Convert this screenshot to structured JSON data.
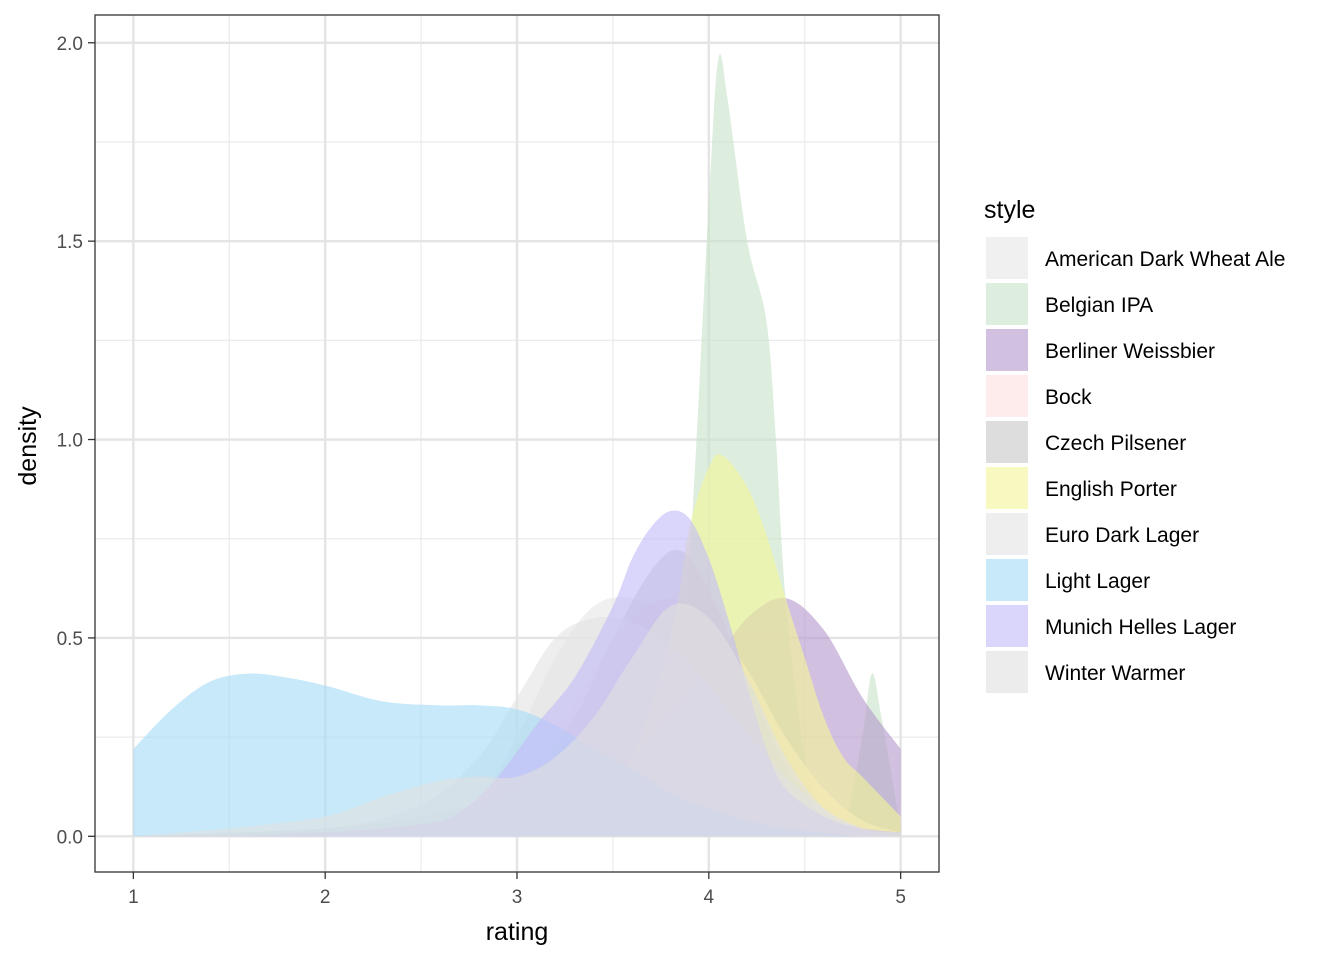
{
  "chart_data": {
    "type": "area",
    "xlabel": "rating",
    "ylabel": "density",
    "xlim": [
      0.8,
      5.2
    ],
    "ylim": [
      -0.09,
      2.07
    ],
    "x_ticks": [
      1,
      2,
      3,
      4,
      5
    ],
    "x_tick_labels": [
      "1",
      "2",
      "3",
      "4",
      "5"
    ],
    "y_ticks": [
      0.0,
      0.5,
      1.0,
      1.5,
      2.0
    ],
    "y_tick_labels": [
      "0.0",
      "0.5",
      "1.0",
      "1.5",
      "2.0"
    ],
    "grid": true,
    "legend_title": "style",
    "legend_position": "right",
    "series": [
      {
        "name": "American Dark Wheat Ale",
        "color": "#e6e6e6",
        "x": [
          1.0,
          1.5,
          2.0,
          2.5,
          2.8,
          3.0,
          3.2,
          3.4,
          3.6,
          3.8,
          4.0,
          4.2,
          4.4,
          4.6,
          4.8,
          5.0
        ],
        "y": [
          0.0,
          0.0,
          0.01,
          0.03,
          0.1,
          0.25,
          0.45,
          0.58,
          0.6,
          0.55,
          0.42,
          0.28,
          0.15,
          0.07,
          0.03,
          0.01
        ]
      },
      {
        "name": "Belgian IPA",
        "color": "#c9e4c9",
        "x": [
          1.0,
          3.4,
          3.6,
          3.8,
          3.9,
          4.0,
          4.05,
          4.1,
          4.2,
          4.3,
          4.35,
          4.4,
          4.5,
          4.6,
          4.7,
          4.8,
          4.85,
          4.9,
          5.0
        ],
        "y": [
          0.0,
          0.0,
          0.02,
          0.15,
          0.7,
          1.6,
          1.96,
          1.85,
          1.5,
          1.3,
          1.0,
          0.6,
          0.2,
          0.05,
          0.02,
          0.25,
          0.41,
          0.3,
          0.02
        ]
      },
      {
        "name": "Berliner Weissbier",
        "color": "#b49acd",
        "x": [
          1.0,
          2.0,
          2.5,
          3.0,
          3.3,
          3.6,
          3.8,
          4.0,
          4.2,
          4.4,
          4.6,
          4.8,
          5.0
        ],
        "y": [
          0.0,
          0.01,
          0.03,
          0.08,
          0.12,
          0.2,
          0.3,
          0.42,
          0.55,
          0.6,
          0.52,
          0.35,
          0.22
        ]
      },
      {
        "name": "Bock",
        "color": "#fddede",
        "x": [
          1.0,
          2.5,
          3.0,
          3.2,
          3.4,
          3.6,
          3.8,
          4.0,
          4.2,
          4.4,
          4.6,
          4.8,
          5.0
        ],
        "y": [
          0.0,
          0.01,
          0.1,
          0.25,
          0.42,
          0.55,
          0.6,
          0.55,
          0.42,
          0.25,
          0.12,
          0.04,
          0.01
        ]
      },
      {
        "name": "Czech Pilsener",
        "color": "#c8c8c8",
        "x": [
          1.0,
          2.0,
          2.5,
          3.0,
          3.3,
          3.5,
          3.7,
          3.85,
          4.0,
          4.2,
          4.4,
          4.6,
          4.8,
          5.0
        ],
        "y": [
          0.0,
          0.02,
          0.05,
          0.12,
          0.3,
          0.5,
          0.67,
          0.72,
          0.62,
          0.4,
          0.18,
          0.05,
          0.01,
          0.0
        ]
      },
      {
        "name": "English Porter",
        "color": "#f4f69a",
        "x": [
          1.0,
          3.0,
          3.4,
          3.6,
          3.8,
          3.9,
          4.0,
          4.07,
          4.2,
          4.3,
          4.4,
          4.5,
          4.6,
          4.7,
          4.8,
          5.0
        ],
        "y": [
          0.0,
          0.0,
          0.05,
          0.2,
          0.5,
          0.78,
          0.93,
          0.96,
          0.88,
          0.76,
          0.6,
          0.45,
          0.3,
          0.2,
          0.15,
          0.05
        ]
      },
      {
        "name": "Euro Dark Lager",
        "color": "#e3e3e3",
        "x": [
          1.0,
          2.0,
          2.5,
          2.8,
          3.0,
          3.2,
          3.4,
          3.6,
          3.8,
          4.0,
          4.2,
          4.4,
          4.6,
          4.8,
          5.0
        ],
        "y": [
          0.0,
          0.02,
          0.08,
          0.2,
          0.35,
          0.5,
          0.55,
          0.54,
          0.48,
          0.38,
          0.26,
          0.15,
          0.07,
          0.02,
          0.0
        ]
      },
      {
        "name": "Light Lager",
        "color": "#a6dcf7",
        "x": [
          1.0,
          1.2,
          1.4,
          1.6,
          1.8,
          2.0,
          2.3,
          2.6,
          2.8,
          3.0,
          3.2,
          3.4,
          3.6,
          3.8,
          4.0,
          4.2,
          4.4,
          4.6,
          4.8,
          5.0
        ],
        "y": [
          0.22,
          0.32,
          0.39,
          0.41,
          0.4,
          0.38,
          0.34,
          0.33,
          0.33,
          0.32,
          0.28,
          0.22,
          0.17,
          0.11,
          0.07,
          0.04,
          0.02,
          0.01,
          0.0,
          0.0
        ]
      },
      {
        "name": "Munich Helles Lager",
        "color": "#c3bcf9",
        "x": [
          1.0,
          1.5,
          2.0,
          2.5,
          2.7,
          2.9,
          3.1,
          3.3,
          3.5,
          3.6,
          3.7,
          3.8,
          3.9,
          4.0,
          4.1,
          4.2,
          4.3,
          4.4,
          4.6,
          4.8,
          5.0
        ],
        "y": [
          0.0,
          0.0,
          0.01,
          0.03,
          0.06,
          0.15,
          0.28,
          0.4,
          0.58,
          0.7,
          0.78,
          0.82,
          0.8,
          0.7,
          0.55,
          0.38,
          0.22,
          0.12,
          0.05,
          0.02,
          0.01
        ]
      },
      {
        "name": "Winter Warmer",
        "color": "#e0e0e0",
        "x": [
          1.0,
          1.5,
          2.0,
          2.3,
          2.6,
          2.8,
          3.0,
          3.2,
          3.4,
          3.6,
          3.8,
          4.0,
          4.2,
          4.4,
          4.6,
          4.8,
          5.0
        ],
        "y": [
          0.0,
          0.02,
          0.05,
          0.1,
          0.14,
          0.15,
          0.15,
          0.2,
          0.3,
          0.45,
          0.58,
          0.55,
          0.4,
          0.2,
          0.07,
          0.02,
          0.01
        ]
      }
    ]
  }
}
